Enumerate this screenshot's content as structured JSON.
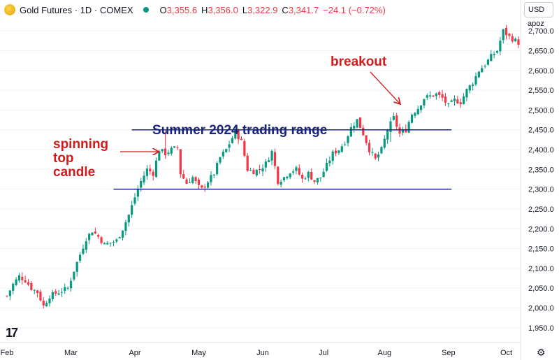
{
  "header": {
    "title": "Gold Futures · 1D · COMEX",
    "ohlc": [
      {
        "label": "O",
        "value": "3,355.6"
      },
      {
        "label": "H",
        "value": "3,356.0"
      },
      {
        "label": "L",
        "value": "3,322.9"
      },
      {
        "label": "C",
        "value": "3,341.7"
      }
    ],
    "change": "−24.1 (−0.72%)"
  },
  "toolbar": {
    "currency": "USD",
    "mode": "apoz"
  },
  "logo_text": "17",
  "settings_icon": "gear-icon",
  "colors": {
    "up": "#089981",
    "down": "#f23645",
    "annotation": "#d01c1c",
    "range_line": "#1a237e"
  },
  "annotations": {
    "range_title": "Summer 2024 trading range",
    "spinning": [
      "spinning",
      "top",
      "candle"
    ],
    "breakout": "breakout"
  },
  "chart_data": {
    "type": "candlestick",
    "title": "Gold Futures · 1D · COMEX",
    "xlabel": "",
    "ylabel": "",
    "ylim": [
      1925,
      2725
    ],
    "y_ticks": [
      "1,950.0",
      "2,000.0",
      "2,050.0",
      "2,100.0",
      "2,150.0",
      "2,200.0",
      "2,250.0",
      "2,300.0",
      "2,350.0",
      "2,400.0",
      "2,450.0",
      "2,500.0",
      "2,550.0",
      "2,600.0",
      "2,650.0",
      "2,700.0"
    ],
    "x_ticks": [
      {
        "label": "Feb",
        "index": 0
      },
      {
        "label": "Mar",
        "index": 21
      },
      {
        "label": "Apr",
        "index": 42
      },
      {
        "label": "May",
        "index": 63
      },
      {
        "label": "Jun",
        "index": 84
      },
      {
        "label": "Jul",
        "index": 104
      },
      {
        "label": "Aug",
        "index": 124
      },
      {
        "label": "Sep",
        "index": 145
      },
      {
        "label": "Oct",
        "index": 164
      }
    ],
    "range_lines": [
      {
        "value": 2450,
        "start_index": 41,
        "end_index": 146
      },
      {
        "value": 2300,
        "start_index": 35,
        "end_index": 146
      }
    ],
    "spinning_top_index": 52,
    "breakout_index": 126,
    "close_anchors": [
      [
        0,
        2030
      ],
      [
        2,
        2060
      ],
      [
        4,
        2080
      ],
      [
        6,
        2070
      ],
      [
        8,
        2050
      ],
      [
        10,
        2040
      ],
      [
        12,
        2005
      ],
      [
        14,
        2030
      ],
      [
        17,
        2040
      ],
      [
        20,
        2050
      ],
      [
        22,
        2095
      ],
      [
        24,
        2135
      ],
      [
        26,
        2175
      ],
      [
        28,
        2195
      ],
      [
        30,
        2180
      ],
      [
        32,
        2160
      ],
      [
        34,
        2165
      ],
      [
        36,
        2170
      ],
      [
        38,
        2200
      ],
      [
        40,
        2235
      ],
      [
        42,
        2280
      ],
      [
        44,
        2320
      ],
      [
        46,
        2350
      ],
      [
        48,
        2340
      ],
      [
        50,
        2400
      ],
      [
        52,
        2390
      ],
      [
        54,
        2400
      ],
      [
        56,
        2405
      ],
      [
        57,
        2340
      ],
      [
        59,
        2315
      ],
      [
        61,
        2330
      ],
      [
        63,
        2305
      ],
      [
        64,
        2300
      ],
      [
        66,
        2320
      ],
      [
        68,
        2340
      ],
      [
        70,
        2380
      ],
      [
        72,
        2400
      ],
      [
        75,
        2445
      ],
      [
        77,
        2420
      ],
      [
        79,
        2350
      ],
      [
        81,
        2345
      ],
      [
        83,
        2350
      ],
      [
        85,
        2365
      ],
      [
        87,
        2395
      ],
      [
        89,
        2320
      ],
      [
        91,
        2330
      ],
      [
        93,
        2345
      ],
      [
        95,
        2350
      ],
      [
        97,
        2325
      ],
      [
        99,
        2340
      ],
      [
        101,
        2320
      ],
      [
        103,
        2330
      ],
      [
        105,
        2360
      ],
      [
        107,
        2390
      ],
      [
        109,
        2400
      ],
      [
        111,
        2420
      ],
      [
        113,
        2455
      ],
      [
        115,
        2475
      ],
      [
        117,
        2440
      ],
      [
        119,
        2400
      ],
      [
        121,
        2375
      ],
      [
        123,
        2400
      ],
      [
        125,
        2450
      ],
      [
        127,
        2480
      ],
      [
        129,
        2440
      ],
      [
        131,
        2450
      ],
      [
        133,
        2490
      ],
      [
        135,
        2505
      ],
      [
        137,
        2530
      ],
      [
        139,
        2535
      ],
      [
        141,
        2540
      ],
      [
        143,
        2530
      ],
      [
        145,
        2510
      ],
      [
        147,
        2525
      ],
      [
        149,
        2520
      ],
      [
        151,
        2550
      ],
      [
        153,
        2570
      ],
      [
        155,
        2600
      ],
      [
        157,
        2615
      ],
      [
        159,
        2635
      ],
      [
        161,
        2650
      ],
      [
        163,
        2700
      ],
      [
        165,
        2685
      ],
      [
        168,
        2670
      ]
    ]
  }
}
